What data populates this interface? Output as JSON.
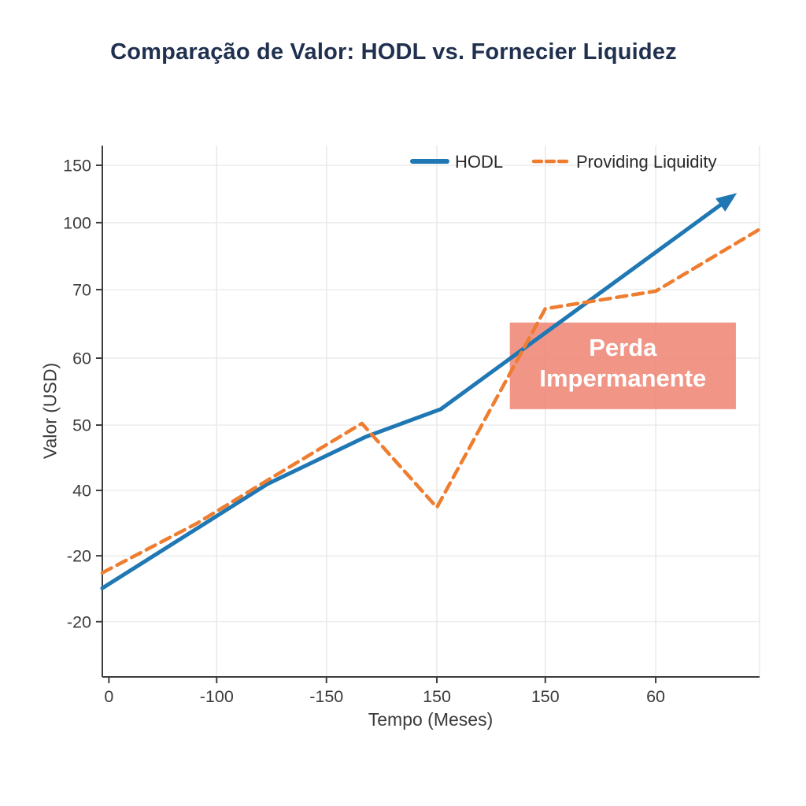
{
  "chart_data": {
    "type": "line",
    "title": "Comparação de Valor: HODL vs. Fornecier Liquidez",
    "xlabel": "Tempo (Meses)",
    "ylabel": "Valor (USD)",
    "grid": true,
    "legend_position": "top-right",
    "x_ticks": [
      {
        "label": "0",
        "pos": 0.01
      },
      {
        "label": "-100",
        "pos": 0.174
      },
      {
        "label": "-150",
        "pos": 0.341
      },
      {
        "label": "150",
        "pos": 0.509
      },
      {
        "label": "150",
        "pos": 0.674
      },
      {
        "label": "60",
        "pos": 0.842
      }
    ],
    "extra_vgrid": [
      1.0
    ],
    "y_ticks": [
      {
        "label": "150",
        "pos": 0.963
      },
      {
        "label": "100",
        "pos": 0.855
      },
      {
        "label": "70",
        "pos": 0.729
      },
      {
        "label": "60",
        "pos": 0.6
      },
      {
        "label": "50",
        "pos": 0.474
      },
      {
        "label": "40",
        "pos": 0.351
      },
      {
        "label": "-20",
        "pos": 0.228
      },
      {
        "label": "-20",
        "pos": 0.104
      }
    ],
    "series": [
      {
        "name": "HODL",
        "color": "#1f77b4",
        "style": "solid",
        "width": 5,
        "arrow_end": true,
        "points": [
          [
            0.0,
            0.167
          ],
          [
            0.251,
            0.363
          ],
          [
            0.401,
            0.452
          ],
          [
            0.515,
            0.504
          ],
          [
            0.629,
            0.607
          ],
          [
            0.958,
            0.904
          ]
        ]
      },
      {
        "name": "Providing Liquidity",
        "color": "#ee7d30",
        "style": "dashed",
        "width": 4.5,
        "arrow_end": false,
        "points": [
          [
            0.0,
            0.196
          ],
          [
            0.144,
            0.289
          ],
          [
            0.251,
            0.37
          ],
          [
            0.395,
            0.477
          ],
          [
            0.509,
            0.319
          ],
          [
            0.674,
            0.693
          ],
          [
            0.842,
            0.726
          ],
          [
            0.998,
            0.841
          ]
        ]
      }
    ],
    "annotation": {
      "lines": [
        "Perda",
        "Impermanente"
      ],
      "text_color": "#ffffff",
      "bg_color": "#ef8372",
      "bg_opacity": 0.85,
      "x0": 0.62,
      "x1": 0.964,
      "y0": 0.504,
      "y1": 0.667
    },
    "colors": {
      "axis": "#3d3d3d",
      "grid": "#e7e7e7",
      "tick_text": "#3b3b3b",
      "title": "#20304f",
      "axis_label": "#3b3b3b",
      "legend_text": "#2b2b2b"
    }
  }
}
